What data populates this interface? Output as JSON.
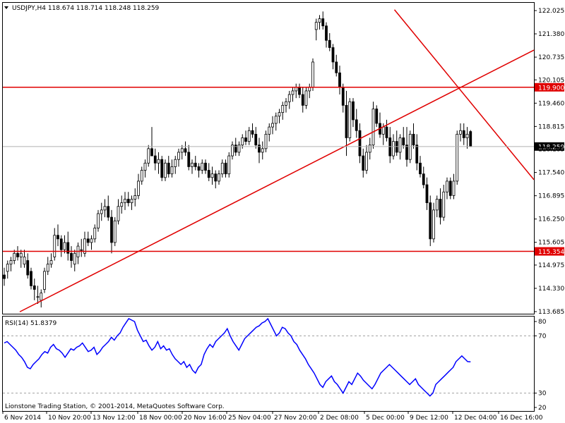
{
  "header": {
    "symbol_text": "USDJPY,H4  118.674 118.714 118.248 118.259",
    "indicator_text": "RSI(14) 51.8379",
    "footer_text": "Lionstone Trading Station, © 2001-2014, MetaQuotes Software Corp."
  },
  "colors": {
    "bull_fill": "#ffffff",
    "bear_fill": "#000000",
    "candle_stroke": "#000000",
    "trend_line": "#e00000",
    "level_line": "#e00000",
    "level_label_bg": "#e00000",
    "rsi_line": "#0000ff",
    "last_price_bg": "#000000",
    "grid": "#a0a0a0"
  },
  "chart_data": {
    "type": "candlestick",
    "price_axis": {
      "ticks": [
        "122.025",
        "121.380",
        "120.735",
        "120.105",
        "119.460",
        "118.815",
        "118.185",
        "117.540",
        "116.895",
        "116.250",
        "115.605",
        "114.975",
        "114.330",
        "113.685"
      ],
      "range": [
        113.685,
        122.025
      ]
    },
    "levels": [
      {
        "label": "119.900",
        "value": 119.9
      },
      {
        "label": "115.354",
        "value": 115.354
      }
    ],
    "last_price": {
      "label": "118.259",
      "value": 118.259
    },
    "trend_lines": [
      {
        "from": [
          0,
          113.68
        ],
        "to": [
          196,
          120.93
        ]
      },
      {
        "from": [
          134,
          122.05
        ],
        "to": [
          196,
          117.34
        ]
      }
    ],
    "x_axis": {
      "labels": [
        "6 Nov 2014",
        "10 Nov 20:00",
        "13 Nov 12:00",
        "18 Nov 00:00",
        "20 Nov 16:00",
        "25 Nov 04:00",
        "27 Nov 20:00",
        "2 Dec 08:00",
        "5 Dec 00:00",
        "9 Dec 12:00",
        "12 Dec 04:00",
        "16 Dec 16:00"
      ]
    },
    "candles": [
      [
        114.7,
        114.9,
        114.4,
        114.6
      ],
      [
        114.8,
        115.1,
        114.6,
        115.0
      ],
      [
        115.0,
        115.2,
        114.8,
        115.1
      ],
      [
        115.1,
        115.4,
        115.0,
        115.3
      ],
      [
        115.3,
        115.5,
        115.1,
        115.2
      ],
      [
        115.2,
        115.4,
        114.9,
        115.3
      ],
      [
        115.0,
        115.4,
        114.9,
        115.2
      ],
      [
        115.1,
        115.3,
        114.6,
        114.7
      ],
      [
        114.8,
        114.9,
        114.3,
        114.4
      ],
      [
        114.4,
        114.6,
        114.0,
        114.3
      ],
      [
        114.1,
        114.4,
        113.9,
        114.1
      ],
      [
        114.0,
        114.3,
        113.8,
        114.2
      ],
      [
        114.3,
        114.9,
        114.2,
        114.8
      ],
      [
        114.8,
        115.2,
        114.7,
        115.0
      ],
      [
        115.0,
        115.3,
        114.9,
        115.1
      ],
      [
        115.2,
        116.0,
        115.1,
        115.8
      ],
      [
        115.8,
        116.1,
        115.5,
        115.7
      ],
      [
        115.7,
        115.8,
        115.2,
        115.4
      ],
      [
        115.4,
        115.8,
        115.3,
        115.6
      ],
      [
        115.6,
        115.9,
        115.1,
        115.3
      ],
      [
        115.3,
        115.5,
        114.9,
        115.1
      ],
      [
        115.0,
        115.4,
        114.8,
        115.3
      ],
      [
        115.2,
        115.6,
        115.0,
        115.5
      ],
      [
        115.4,
        115.7,
        115.2,
        115.4
      ],
      [
        115.3,
        115.9,
        115.2,
        115.7
      ],
      [
        115.7,
        115.9,
        115.5,
        115.6
      ],
      [
        115.6,
        115.8,
        115.4,
        115.7
      ],
      [
        115.7,
        116.1,
        115.6,
        116.0
      ],
      [
        116.0,
        116.5,
        115.9,
        116.4
      ],
      [
        116.4,
        116.7,
        116.2,
        116.5
      ],
      [
        116.5,
        116.8,
        116.3,
        116.6
      ],
      [
        116.6,
        116.9,
        116.2,
        116.3
      ],
      [
        116.3,
        116.5,
        115.3,
        115.6
      ],
      [
        115.6,
        116.3,
        115.5,
        116.2
      ],
      [
        116.2,
        116.8,
        116.1,
        116.6
      ],
      [
        116.6,
        116.9,
        116.4,
        116.7
      ],
      [
        116.7,
        117.0,
        116.5,
        116.8
      ],
      [
        116.8,
        117.0,
        116.6,
        116.7
      ],
      [
        116.7,
        116.9,
        116.5,
        116.8
      ],
      [
        116.8,
        117.1,
        116.6,
        116.9
      ],
      [
        116.9,
        117.5,
        116.8,
        117.3
      ],
      [
        117.3,
        117.7,
        117.2,
        117.6
      ],
      [
        117.6,
        117.9,
        117.4,
        117.8
      ],
      [
        117.8,
        118.3,
        117.7,
        118.2
      ],
      [
        118.2,
        118.8,
        118.0,
        118.0
      ],
      [
        118.0,
        118.2,
        117.6,
        117.8
      ],
      [
        117.8,
        118.1,
        117.5,
        117.9
      ],
      [
        117.9,
        118.0,
        117.3,
        117.4
      ],
      [
        117.4,
        117.9,
        117.3,
        117.8
      ],
      [
        117.8,
        118.0,
        117.4,
        117.5
      ],
      [
        117.5,
        117.9,
        117.4,
        117.7
      ],
      [
        117.7,
        118.0,
        117.5,
        117.9
      ],
      [
        117.9,
        118.2,
        117.7,
        118.1
      ],
      [
        118.1,
        118.3,
        117.9,
        118.2
      ],
      [
        118.2,
        118.4,
        118.0,
        118.1
      ],
      [
        118.1,
        118.3,
        117.6,
        117.7
      ],
      [
        117.7,
        117.9,
        117.5,
        117.8
      ],
      [
        117.8,
        118.0,
        117.6,
        117.7
      ],
      [
        117.7,
        117.8,
        117.4,
        117.6
      ],
      [
        117.6,
        117.9,
        117.5,
        117.8
      ],
      [
        117.8,
        117.9,
        117.5,
        117.6
      ],
      [
        117.6,
        117.8,
        117.3,
        117.4
      ],
      [
        117.4,
        117.7,
        117.2,
        117.5
      ],
      [
        117.5,
        117.6,
        117.1,
        117.3
      ],
      [
        117.3,
        117.6,
        117.2,
        117.5
      ],
      [
        117.5,
        117.9,
        117.4,
        117.8
      ],
      [
        117.8,
        117.9,
        117.4,
        117.5
      ],
      [
        117.5,
        118.1,
        117.4,
        118.0
      ],
      [
        118.0,
        118.4,
        117.9,
        118.3
      ],
      [
        118.3,
        118.5,
        118.0,
        118.1
      ],
      [
        118.1,
        118.4,
        118.0,
        118.3
      ],
      [
        118.3,
        118.6,
        118.2,
        118.5
      ],
      [
        118.5,
        118.7,
        118.3,
        118.4
      ],
      [
        118.4,
        118.8,
        118.3,
        118.7
      ],
      [
        118.7,
        118.9,
        118.5,
        118.6
      ],
      [
        118.6,
        118.8,
        118.2,
        118.3
      ],
      [
        118.3,
        118.5,
        117.8,
        118.1
      ],
      [
        118.1,
        118.4,
        117.9,
        118.2
      ],
      [
        118.2,
        118.7,
        118.1,
        118.6
      ],
      [
        118.6,
        118.9,
        118.4,
        118.8
      ],
      [
        118.8,
        119.1,
        118.6,
        118.9
      ],
      [
        118.9,
        119.2,
        118.7,
        119.1
      ],
      [
        119.1,
        119.3,
        118.9,
        119.2
      ],
      [
        119.2,
        119.5,
        119.0,
        119.4
      ],
      [
        119.4,
        119.6,
        119.2,
        119.5
      ],
      [
        119.5,
        119.8,
        119.3,
        119.7
      ],
      [
        119.7,
        119.9,
        119.5,
        119.8
      ],
      [
        119.8,
        120.0,
        119.6,
        119.9
      ],
      [
        119.9,
        120.0,
        119.6,
        119.7
      ],
      [
        119.7,
        119.9,
        119.2,
        119.4
      ],
      [
        119.4,
        119.9,
        119.3,
        119.8
      ],
      [
        119.8,
        120.0,
        119.6,
        119.9
      ],
      [
        119.9,
        120.7,
        119.8,
        120.6
      ],
      [
        121.5,
        121.8,
        121.2,
        121.7
      ],
      [
        121.7,
        121.9,
        121.5,
        121.8
      ],
      [
        121.8,
        122.0,
        121.5,
        121.6
      ],
      [
        121.6,
        121.7,
        121.0,
        121.2
      ],
      [
        121.2,
        121.4,
        120.9,
        121.0
      ],
      [
        121.0,
        121.1,
        120.4,
        120.6
      ],
      [
        120.6,
        120.8,
        120.2,
        120.3
      ],
      [
        120.3,
        120.5,
        119.7,
        119.9
      ],
      [
        119.9,
        120.0,
        119.2,
        119.4
      ],
      [
        119.4,
        119.8,
        118.0,
        118.5
      ],
      [
        118.5,
        119.6,
        118.4,
        119.5
      ],
      [
        119.5,
        119.6,
        118.8,
        119.0
      ],
      [
        119.0,
        119.3,
        118.5,
        118.7
      ],
      [
        118.7,
        118.9,
        117.8,
        118.0
      ],
      [
        118.0,
        118.2,
        117.4,
        117.6
      ],
      [
        117.6,
        118.3,
        117.5,
        118.1
      ],
      [
        118.1,
        118.5,
        117.9,
        118.3
      ],
      [
        118.3,
        119.5,
        118.2,
        119.3
      ],
      [
        119.3,
        119.4,
        118.8,
        118.9
      ],
      [
        118.9,
        119.2,
        118.5,
        118.6
      ],
      [
        118.6,
        118.9,
        118.3,
        118.8
      ],
      [
        118.8,
        119.0,
        118.4,
        118.5
      ],
      [
        118.5,
        118.8,
        117.8,
        118.0
      ],
      [
        118.0,
        118.6,
        117.9,
        118.4
      ],
      [
        118.4,
        118.7,
        118.0,
        118.1
      ],
      [
        118.1,
        118.6,
        117.9,
        118.5
      ],
      [
        118.5,
        118.8,
        118.2,
        118.3
      ],
      [
        118.3,
        118.8,
        117.7,
        117.9
      ],
      [
        117.9,
        118.7,
        117.8,
        118.6
      ],
      [
        118.6,
        118.9,
        118.2,
        118.3
      ],
      [
        118.3,
        118.6,
        117.6,
        117.8
      ],
      [
        117.8,
        118.0,
        117.4,
        117.5
      ],
      [
        117.5,
        117.7,
        117.1,
        117.2
      ],
      [
        117.2,
        117.4,
        116.5,
        116.7
      ],
      [
        116.7,
        116.9,
        115.5,
        115.7
      ],
      [
        115.7,
        116.7,
        115.6,
        116.5
      ],
      [
        116.5,
        116.9,
        116.3,
        116.8
      ],
      [
        116.8,
        117.1,
        116.1,
        116.3
      ],
      [
        116.3,
        117.2,
        116.2,
        117.0
      ],
      [
        117.0,
        117.4,
        116.8,
        117.3
      ],
      [
        117.3,
        117.4,
        116.8,
        116.9
      ],
      [
        116.9,
        117.5,
        116.8,
        117.3
      ],
      [
        117.3,
        118.7,
        117.2,
        118.6
      ],
      [
        118.6,
        118.9,
        118.4,
        118.7
      ],
      [
        118.7,
        118.9,
        118.3,
        118.5
      ],
      [
        118.5,
        118.8,
        118.2,
        118.6
      ],
      [
        118.674,
        118.714,
        118.248,
        118.259
      ]
    ],
    "rsi": {
      "name": "RSI(14)",
      "ticks": [
        "80",
        "70",
        "30",
        "20"
      ],
      "levels": [
        70,
        30
      ],
      "range": [
        18,
        82
      ],
      "values": [
        65,
        66,
        64,
        62,
        60,
        57,
        55,
        52,
        48,
        47,
        50,
        52,
        54,
        57,
        59,
        58,
        62,
        64,
        61,
        60,
        58,
        55,
        58,
        61,
        60,
        62,
        63,
        65,
        62,
        59,
        60,
        62,
        57,
        59,
        62,
        64,
        66,
        69,
        67,
        70,
        72,
        76,
        79,
        82,
        81,
        80,
        74,
        70,
        66,
        67,
        63,
        60,
        62,
        66,
        61,
        63,
        60,
        61,
        57,
        54,
        52,
        50,
        52,
        48,
        50,
        46,
        44,
        48,
        50,
        57,
        61,
        64,
        62,
        66,
        68,
        70,
        72,
        75,
        70,
        66,
        63,
        60,
        64,
        68,
        70,
        72,
        74,
        76,
        77,
        79,
        80,
        82,
        78,
        74,
        70,
        72,
        76,
        75,
        72,
        70,
        66,
        64,
        60,
        57,
        54,
        50,
        47,
        44,
        40,
        36,
        34,
        38,
        40,
        42,
        38,
        36,
        33,
        30,
        34,
        38,
        36,
        40,
        44,
        42,
        39,
        37,
        35,
        33,
        36,
        40,
        44,
        46,
        48,
        50,
        48,
        46,
        44,
        42,
        40,
        38,
        36,
        38,
        40,
        36,
        34,
        32,
        30,
        28,
        30,
        36,
        38,
        40,
        42,
        44,
        46,
        48,
        52,
        54,
        56,
        54,
        52,
        51.8379
      ]
    }
  }
}
